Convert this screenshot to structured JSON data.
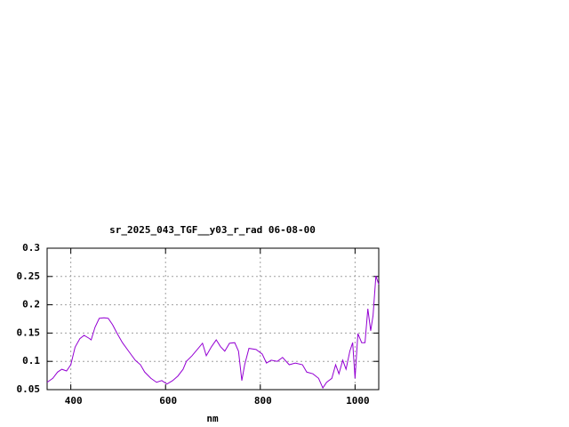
{
  "chart_data": {
    "type": "line",
    "title": "sr_2025_043_TGF__y03_r_rad 06-08-00",
    "x_label": "nm",
    "x": [
      350,
      362,
      372,
      381,
      391,
      400,
      409,
      419,
      428,
      438,
      443,
      451,
      460,
      470,
      479,
      488,
      498,
      509,
      522,
      536,
      547,
      556,
      569,
      581,
      592,
      603,
      615,
      626,
      637,
      644,
      656,
      667,
      678,
      686,
      697,
      707,
      716,
      725,
      735,
      746,
      754,
      761,
      767,
      776,
      791,
      804,
      813,
      823,
      836,
      847,
      861,
      874,
      889,
      898,
      911,
      923,
      932,
      940,
      951,
      959,
      966,
      974,
      981,
      989,
      995,
      1000,
      1006,
      1014,
      1021,
      1027,
      1033,
      1038,
      1044,
      1050
    ],
    "series": [
      {
        "color": "#9400d3",
        "values": [
          0.063,
          0.07,
          0.081,
          0.086,
          0.083,
          0.094,
          0.125,
          0.14,
          0.146,
          0.141,
          0.138,
          0.16,
          0.176,
          0.177,
          0.176,
          0.165,
          0.149,
          0.133,
          0.118,
          0.102,
          0.094,
          0.081,
          0.07,
          0.063,
          0.066,
          0.06,
          0.066,
          0.074,
          0.086,
          0.1,
          0.11,
          0.121,
          0.132,
          0.11,
          0.126,
          0.138,
          0.126,
          0.118,
          0.132,
          0.133,
          0.118,
          0.066,
          0.094,
          0.123,
          0.121,
          0.113,
          0.097,
          0.102,
          0.1,
          0.107,
          0.094,
          0.097,
          0.094,
          0.081,
          0.078,
          0.07,
          0.053,
          0.063,
          0.07,
          0.094,
          0.078,
          0.102,
          0.086,
          0.118,
          0.133,
          0.07,
          0.149,
          0.133,
          0.133,
          0.193,
          0.154,
          0.181,
          0.251,
          0.236
        ]
      }
    ],
    "xlim": [
      350,
      1050
    ],
    "xticks": [
      400,
      600,
      800,
      1000
    ],
    "ylim": [
      0.05,
      0.3
    ],
    "yticks": [
      0.05,
      0.1,
      0.15,
      0.2,
      0.25,
      0.3
    ],
    "grid": true
  }
}
